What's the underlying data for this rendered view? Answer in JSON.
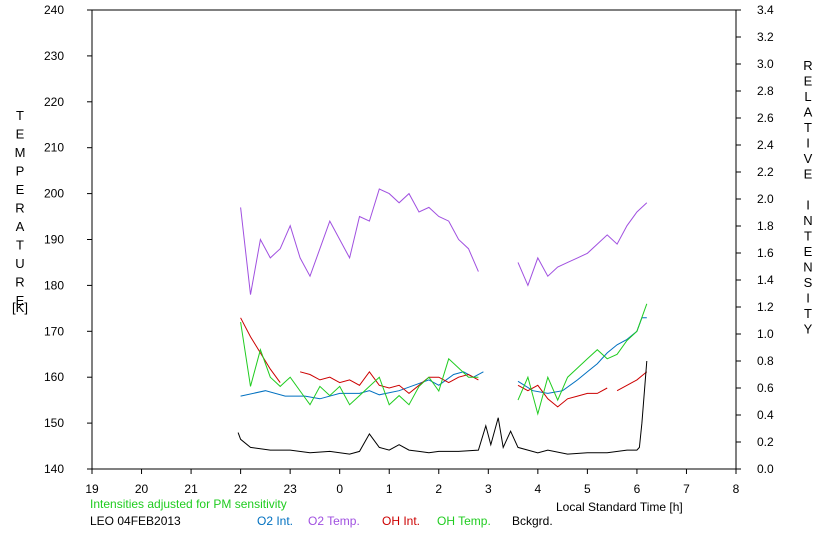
{
  "chart_data": {
    "type": "line",
    "xlabel": "Local Standard Time [h]",
    "ylabel_left": "TEMPERATURE",
    "ylabel_left_unit": "[K]",
    "ylabel_right": "RELATIVE INTENSITY",
    "x_range_hours": [
      19,
      32
    ],
    "x_tick_labels": [
      "19",
      "20",
      "21",
      "22",
      "23",
      "0",
      "1",
      "2",
      "3",
      "4",
      "5",
      "6",
      "7",
      "8"
    ],
    "ylim_left": [
      140,
      240
    ],
    "y_left_ticks": [
      "140",
      "150",
      "160",
      "170",
      "180",
      "190",
      "200",
      "210",
      "220",
      "230",
      "240"
    ],
    "ylim_right": [
      0.0,
      3.4
    ],
    "y_right_ticks": [
      "0.0",
      "0.2",
      "0.4",
      "0.6",
      "0.8",
      "1.0",
      "1.2",
      "1.4",
      "1.6",
      "1.8",
      "2.0",
      "2.2",
      "2.4",
      "2.6",
      "2.8",
      "3.0",
      "3.2",
      "3.4"
    ],
    "grid": false,
    "note": "Intensities adjusted for PM sensitivity",
    "site_date": "LEO 04FEB2013",
    "legend_placement": "bottom",
    "series": [
      {
        "name": "O2 Int.",
        "axis": "right",
        "color": "#0070c0",
        "points": [
          [
            22.0,
            0.54
          ],
          [
            22.5,
            0.58
          ],
          [
            22.9,
            0.54
          ],
          [
            23.3,
            0.54
          ],
          [
            23.6,
            0.52
          ],
          [
            24.0,
            0.56
          ],
          [
            24.4,
            0.56
          ],
          [
            24.6,
            0.58
          ],
          [
            24.8,
            0.55
          ],
          [
            25.2,
            0.58
          ],
          [
            25.5,
            0.62
          ],
          [
            25.8,
            0.66
          ],
          [
            26.0,
            0.62
          ],
          [
            26.3,
            0.7
          ],
          [
            26.5,
            0.72
          ],
          [
            26.7,
            0.68
          ],
          [
            26.9,
            0.72
          ],
          null,
          [
            27.6,
            0.65
          ],
          [
            27.9,
            0.58
          ],
          [
            28.2,
            0.56
          ],
          [
            28.5,
            0.58
          ],
          [
            28.8,
            0.66
          ],
          [
            29.0,
            0.72
          ],
          [
            29.2,
            0.78
          ],
          [
            29.4,
            0.86
          ],
          [
            29.6,
            0.92
          ],
          [
            29.8,
            0.96
          ],
          [
            30.0,
            1.02
          ],
          [
            30.1,
            1.12
          ],
          [
            30.2,
            1.12
          ]
        ]
      },
      {
        "name": "O2 Temp.",
        "axis": "left",
        "color": "#a050e0",
        "points": [
          [
            22.0,
            197
          ],
          [
            22.2,
            178
          ],
          [
            22.4,
            190
          ],
          [
            22.6,
            186
          ],
          [
            22.8,
            188
          ],
          [
            23.0,
            193
          ],
          [
            23.2,
            186
          ],
          [
            23.4,
            182
          ],
          [
            23.6,
            188
          ],
          [
            23.8,
            194
          ],
          [
            24.0,
            190
          ],
          [
            24.2,
            186
          ],
          [
            24.4,
            195
          ],
          [
            24.6,
            194
          ],
          [
            24.8,
            201
          ],
          [
            25.0,
            200
          ],
          [
            25.2,
            198
          ],
          [
            25.4,
            200
          ],
          [
            25.6,
            196
          ],
          [
            25.8,
            197
          ],
          [
            26.0,
            195
          ],
          [
            26.2,
            194
          ],
          [
            26.4,
            190
          ],
          [
            26.6,
            188
          ],
          [
            26.8,
            183
          ],
          null,
          [
            27.6,
            185
          ],
          [
            27.8,
            180
          ],
          [
            28.0,
            186
          ],
          [
            28.2,
            182
          ],
          [
            28.4,
            184
          ],
          [
            28.6,
            185
          ],
          [
            28.8,
            186
          ],
          [
            29.0,
            187
          ],
          [
            29.2,
            189
          ],
          [
            29.4,
            191
          ],
          [
            29.6,
            189
          ],
          [
            29.8,
            193
          ],
          [
            30.0,
            196
          ],
          [
            30.2,
            198
          ]
        ]
      },
      {
        "name": "OH Int.",
        "axis": "right",
        "color": "#cc0000",
        "points": [
          [
            22.0,
            1.12
          ],
          [
            22.2,
            0.98
          ],
          [
            22.4,
            0.86
          ],
          [
            22.6,
            0.74
          ],
          [
            22.8,
            0.64
          ],
          null,
          [
            23.2,
            0.72
          ],
          [
            23.4,
            0.7
          ],
          [
            23.6,
            0.66
          ],
          [
            23.8,
            0.68
          ],
          [
            24.0,
            0.64
          ],
          [
            24.2,
            0.66
          ],
          [
            24.4,
            0.62
          ],
          [
            24.6,
            0.72
          ],
          [
            24.8,
            0.62
          ],
          [
            25.0,
            0.6
          ],
          [
            25.2,
            0.62
          ],
          [
            25.4,
            0.56
          ],
          [
            25.6,
            0.62
          ],
          [
            25.8,
            0.68
          ],
          [
            26.0,
            0.68
          ],
          [
            26.2,
            0.64
          ],
          [
            26.4,
            0.68
          ],
          [
            26.6,
            0.7
          ],
          [
            26.8,
            0.66
          ],
          null,
          [
            27.6,
            0.62
          ],
          [
            27.8,
            0.58
          ],
          [
            28.0,
            0.62
          ],
          [
            28.2,
            0.52
          ],
          [
            28.4,
            0.46
          ],
          [
            28.6,
            0.52
          ],
          [
            28.8,
            0.54
          ],
          [
            29.0,
            0.56
          ],
          [
            29.2,
            0.56
          ],
          [
            29.4,
            0.6
          ],
          null,
          [
            29.6,
            0.58
          ],
          [
            29.8,
            0.62
          ],
          [
            30.0,
            0.66
          ],
          [
            30.2,
            0.72
          ]
        ]
      },
      {
        "name": "OH Temp.",
        "axis": "left",
        "color": "#20cc20",
        "points": [
          [
            22.0,
            172
          ],
          [
            22.2,
            158
          ],
          [
            22.4,
            166
          ],
          [
            22.6,
            160
          ],
          [
            22.8,
            158
          ],
          [
            23.0,
            160
          ],
          [
            23.2,
            157
          ],
          [
            23.4,
            154
          ],
          [
            23.6,
            158
          ],
          [
            23.8,
            156
          ],
          [
            24.0,
            158
          ],
          [
            24.2,
            154
          ],
          [
            24.4,
            156
          ],
          [
            24.6,
            158
          ],
          [
            24.8,
            160
          ],
          [
            25.0,
            154
          ],
          [
            25.2,
            156
          ],
          [
            25.4,
            154
          ],
          [
            25.6,
            158
          ],
          [
            25.8,
            160
          ],
          [
            26.0,
            157
          ],
          [
            26.2,
            164
          ],
          [
            26.4,
            162
          ],
          [
            26.6,
            160
          ],
          [
            26.8,
            160
          ],
          null,
          [
            27.6,
            155
          ],
          [
            27.8,
            160
          ],
          [
            28.0,
            152
          ],
          [
            28.2,
            160
          ],
          [
            28.4,
            155
          ],
          [
            28.6,
            160
          ],
          [
            28.8,
            162
          ],
          [
            29.0,
            164
          ],
          [
            29.2,
            166
          ],
          [
            29.4,
            164
          ],
          [
            29.6,
            165
          ],
          [
            29.8,
            168
          ],
          [
            30.0,
            170
          ],
          [
            30.2,
            176
          ]
        ]
      },
      {
        "name": "Bckgrd.",
        "axis": "right",
        "color": "#000000",
        "points": [
          [
            21.95,
            0.27
          ],
          [
            22.0,
            0.22
          ],
          [
            22.2,
            0.16
          ],
          [
            22.6,
            0.14
          ],
          [
            23.0,
            0.14
          ],
          [
            23.4,
            0.12
          ],
          [
            23.8,
            0.13
          ],
          [
            24.2,
            0.11
          ],
          [
            24.4,
            0.13
          ],
          [
            24.6,
            0.26
          ],
          [
            24.8,
            0.16
          ],
          [
            25.0,
            0.14
          ],
          [
            25.2,
            0.18
          ],
          [
            25.4,
            0.14
          ],
          [
            25.6,
            0.13
          ],
          [
            25.8,
            0.12
          ],
          [
            26.0,
            0.13
          ],
          [
            26.4,
            0.13
          ],
          [
            26.8,
            0.14
          ],
          [
            26.95,
            0.32
          ],
          [
            27.05,
            0.18
          ],
          [
            27.2,
            0.38
          ],
          [
            27.3,
            0.16
          ],
          [
            27.45,
            0.28
          ],
          [
            27.6,
            0.16
          ],
          [
            27.8,
            0.14
          ],
          [
            28.0,
            0.12
          ],
          [
            28.2,
            0.14
          ],
          [
            28.6,
            0.11
          ],
          [
            29.0,
            0.12
          ],
          [
            29.4,
            0.12
          ],
          [
            29.8,
            0.14
          ],
          [
            30.0,
            0.14
          ],
          [
            30.05,
            0.16
          ],
          [
            30.1,
            0.34
          ],
          [
            30.2,
            0.8
          ]
        ]
      }
    ]
  }
}
